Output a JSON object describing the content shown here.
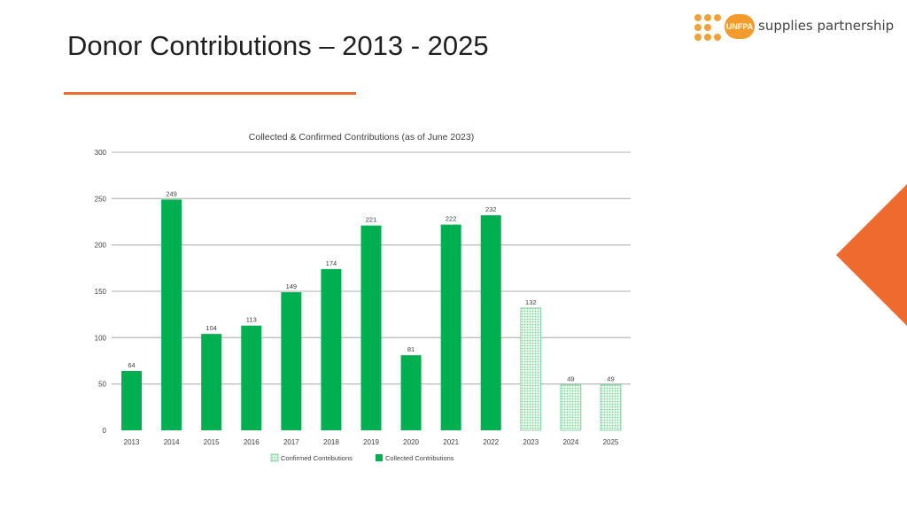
{
  "slide": {
    "title": "Donor Contributions – 2013 - 2025"
  },
  "logo": {
    "badge": "UNFPA",
    "text": "supplies partnership",
    "brand_color": "#f39c2d"
  },
  "colors": {
    "accent": "#ee6a2e",
    "collected": "#00b050",
    "confirmed": "#c9ecd4"
  },
  "chart_data": {
    "type": "bar",
    "title": "Collected & Confirmed Contributions (as of June 2023)",
    "categories": [
      "2013",
      "2014",
      "2015",
      "2016",
      "2017",
      "2018",
      "2019",
      "2020",
      "2021",
      "2022",
      "2023",
      "2024",
      "2025"
    ],
    "values": [
      64,
      249,
      104,
      113,
      149,
      174,
      221,
      81,
      222,
      232,
      132,
      49,
      49
    ],
    "series_type": [
      "collected",
      "collected",
      "collected",
      "collected",
      "collected",
      "collected",
      "collected",
      "collected",
      "collected",
      "collected",
      "confirmed",
      "confirmed",
      "confirmed"
    ],
    "ylim": [
      0,
      300
    ],
    "yticks": [
      0,
      50,
      100,
      150,
      200,
      250,
      300
    ],
    "xlabel": "",
    "ylabel": "",
    "grid": true,
    "legend": [
      {
        "name": "Confirmed Contributions",
        "key": "confirmed"
      },
      {
        "name": "Collected Contributions",
        "key": "collected"
      }
    ],
    "legend_position": "bottom-center"
  }
}
